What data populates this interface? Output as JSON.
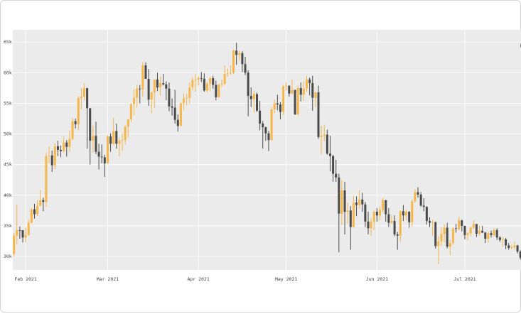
{
  "chart_data": {
    "type": "candlestick",
    "increasing_color": "#f5b64a",
    "decreasing_color": "#4a4a4a",
    "background": "#ebebeb",
    "xlim": [
      -0.4,
      173.2
    ],
    "xticks": [
      {
        "value": 4,
        "label": "Feb 2021"
      },
      {
        "value": 32,
        "label": "Mar 2021"
      },
      {
        "value": 63,
        "label": "Apr 2021"
      },
      {
        "value": 93,
        "label": "May 2021"
      },
      {
        "value": 124,
        "label": "Jun 2021"
      },
      {
        "value": 154,
        "label": "Jul 2021"
      }
    ],
    "ylim": [
      27800,
      67000
    ],
    "yticks": [
      {
        "value": 30000,
        "label": "30k"
      },
      {
        "value": 35000,
        "label": "35k"
      },
      {
        "value": 40000,
        "label": "40k"
      },
      {
        "value": 45000,
        "label": "45k"
      },
      {
        "value": 50000,
        "label": "50k"
      },
      {
        "value": 55000,
        "label": "55k"
      },
      {
        "value": 60000,
        "label": "60k"
      },
      {
        "value": 65000,
        "label": "65k"
      }
    ],
    "open": [
      30400,
      33400,
      34300,
      34300,
      33100,
      33500,
      35500,
      37700,
      36900,
      38300,
      39200,
      38900,
      46400,
      46500,
      44900,
      48000,
      47400,
      47200,
      48600,
      47900,
      49200,
      52100,
      51600,
      55900,
      56100,
      57500,
      54200,
      48900,
      49700,
      47100,
      46300,
      46200,
      45200,
      49600,
      48400,
      50500,
      48400,
      48900,
      49000,
      51200,
      52400,
      54900,
      55900,
      57400,
      57300,
      61200,
      59000,
      55600,
      56800,
      58900,
      57600,
      58300,
      58100,
      57400,
      54500,
      54300,
      52300,
      51300,
      55000,
      55800,
      55900,
      57600,
      58800,
      58900,
      59100,
      59000,
      57100,
      58200,
      59100,
      58000,
      56000,
      58100,
      58200,
      59800,
      59900,
      60000,
      63600,
      62900,
      63200,
      61400,
      60000,
      56200,
      55700,
      56500,
      53800,
      51700,
      51100,
      50100,
      49000,
      54000,
      55000,
      54800,
      53600,
      57800,
      57900,
      56600,
      57200,
      53200,
      57500,
      56400,
      57400,
      58900,
      58300,
      55900,
      56800,
      49500,
      49700,
      49900,
      46800,
      46400,
      43500,
      42900,
      37000,
      40800,
      37300,
      37500,
      34800,
      38800,
      38400,
      39300,
      38500,
      35700,
      34600,
      35700,
      37300,
      36700,
      37600,
      39200,
      36900,
      35500,
      35800,
      33600,
      33400,
      37400,
      36700,
      37300,
      35600,
      39000,
      40500,
      40100,
      38300,
      38100,
      35800,
      35500,
      35600,
      31700,
      32500,
      33700,
      34700,
      31600,
      32200,
      34600,
      34500,
      35900,
      35000,
      33500,
      33800,
      34700,
      35300,
      33700,
      34200,
      33900,
      32900,
      33800,
      33500,
      34300,
      33100,
      32700,
      32800,
      31800,
      31400,
      31500,
      31800,
      30800
    ],
    "high": [
      33800,
      38500,
      34900,
      34300,
      34700,
      36000,
      37900,
      38600,
      39200,
      40900,
      39600,
      46900,
      48000,
      47300,
      48500,
      48900,
      48100,
      49600,
      49000,
      50600,
      52600,
      52500,
      56200,
      57500,
      58300,
      57500,
      54200,
      51400,
      52000,
      48400,
      48300,
      46600,
      49800,
      50100,
      52600,
      51700,
      49400,
      50100,
      51400,
      52400,
      54900,
      57300,
      58000,
      58000,
      61700,
      61700,
      60600,
      56900,
      58900,
      60000,
      59400,
      59800,
      58600,
      58400,
      55800,
      57200,
      53200,
      55100,
      56600,
      56500,
      58400,
      59300,
      59800,
      59400,
      60100,
      59900,
      58500,
      59300,
      59500,
      58700,
      58200,
      58900,
      61200,
      60700,
      61200,
      63800,
      64900,
      63600,
      63500,
      62600,
      60400,
      57600,
      57100,
      56800,
      55400,
      52100,
      51200,
      50500,
      54400,
      55600,
      56400,
      55200,
      58000,
      58400,
      57900,
      58900,
      57200,
      57900,
      58400,
      58600,
      59500,
      59200,
      59500,
      56900,
      57900,
      51300,
      51500,
      50700,
      49700,
      46600,
      45800,
      43500,
      42500,
      42200,
      38800,
      38200,
      39900,
      39800,
      40800,
      40400,
      38900,
      37300,
      36300,
      37500,
      37900,
      38200,
      39500,
      39200,
      37900,
      36800,
      36700,
      34000,
      37500,
      38400,
      37600,
      37400,
      39300,
      41000,
      41300,
      40500,
      39500,
      38200,
      36400,
      36000,
      35700,
      33300,
      34800,
      35300,
      35500,
      32700,
      34700,
      35300,
      36500,
      36000,
      35000,
      33900,
      34900,
      35900,
      35300,
      35000,
      35000,
      34000,
      34000,
      34200,
      34600,
      34600,
      33300,
      33200,
      33000,
      32200,
      31900,
      32400,
      31900,
      31000
    ],
    "low": [
      30000,
      32000,
      32900,
      32300,
      32300,
      33400,
      35400,
      36200,
      36600,
      38200,
      37400,
      38100,
      45200,
      43800,
      44200,
      46400,
      46200,
      47000,
      46300,
      47100,
      49000,
      50900,
      50600,
      54000,
      55500,
      47600,
      45000,
      47000,
      46700,
      44200,
      45200,
      43000,
      45100,
      47100,
      48200,
      47600,
      46300,
      47200,
      48300,
      49400,
      51900,
      53100,
      54300,
      55000,
      56100,
      59000,
      54600,
      53400,
      54200,
      57000,
      56300,
      57900,
      55500,
      53700,
      53000,
      51700,
      50400,
      51300,
      53900,
      54700,
      54900,
      57100,
      56900,
      57900,
      58500,
      56900,
      56800,
      56900,
      57400,
      55500,
      55900,
      57700,
      58000,
      59300,
      59700,
      59800,
      61300,
      62000,
      60100,
      59600,
      52900,
      54400,
      53500,
      53600,
      50600,
      47600,
      48900,
      47200,
      48900,
      53400,
      53900,
      52400,
      53100,
      57100,
      56100,
      56500,
      53100,
      52900,
      55300,
      55400,
      56900,
      56300,
      53800,
      54400,
      49200,
      46700,
      48800,
      46600,
      43900,
      42200,
      42200,
      30700,
      35100,
      33600,
      35300,
      31100,
      34700,
      36600,
      37800,
      37300,
      34800,
      33600,
      33400,
      34300,
      35700,
      35900,
      37200,
      35700,
      34800,
      35300,
      33300,
      31100,
      32400,
      35800,
      35900,
      34700,
      34900,
      38800,
      39600,
      38100,
      37400,
      35200,
      34800,
      33400,
      31300,
      28800,
      31700,
      32300,
      31300,
      30200,
      32000,
      33900,
      34300,
      34100,
      32800,
      32700,
      33300,
      34500,
      33200,
      33400,
      33800,
      32200,
      32300,
      33100,
      33300,
      32700,
      32400,
      31600,
      31200,
      31100,
      31200,
      31200,
      30500,
      29500
    ],
    "close": [
      33400,
      34300,
      34200,
      33100,
      33500,
      35500,
      37700,
      36900,
      38300,
      39200,
      38900,
      46400,
      46500,
      44900,
      48000,
      47400,
      47200,
      48600,
      47900,
      49200,
      52100,
      51600,
      55900,
      56100,
      57500,
      54200,
      48900,
      49700,
      47100,
      46300,
      46200,
      45200,
      49600,
      48400,
      50500,
      48400,
      48900,
      49000,
      51200,
      52400,
      54900,
      55900,
      57400,
      57300,
      61200,
      59000,
      55600,
      56800,
      58900,
      57600,
      58300,
      58100,
      57400,
      54500,
      54300,
      52300,
      51300,
      55000,
      55800,
      55900,
      57600,
      58800,
      58900,
      59100,
      59000,
      57100,
      58200,
      59100,
      58000,
      56000,
      58100,
      58200,
      59800,
      59900,
      60000,
      63600,
      62900,
      63200,
      61400,
      60000,
      56200,
      55700,
      56500,
      53800,
      51700,
      51100,
      50100,
      49000,
      54000,
      55000,
      54800,
      53600,
      57800,
      57900,
      56600,
      57200,
      53200,
      57500,
      56400,
      57400,
      58900,
      58300,
      55900,
      56800,
      49500,
      49700,
      49900,
      46800,
      46400,
      43500,
      42900,
      37000,
      40800,
      37300,
      37500,
      34800,
      38800,
      38400,
      39300,
      38500,
      35700,
      34600,
      35700,
      37300,
      36700,
      37600,
      39200,
      36900,
      35500,
      35800,
      33600,
      33400,
      37400,
      36700,
      37300,
      35600,
      39000,
      40500,
      40100,
      38300,
      38100,
      35800,
      35500,
      35600,
      31700,
      32500,
      33700,
      34700,
      31600,
      32200,
      34600,
      34500,
      35900,
      35000,
      33500,
      33800,
      34700,
      35300,
      33700,
      34200,
      33900,
      32900,
      33800,
      33500,
      34300,
      33100,
      32700,
      32800,
      31800,
      31400,
      31500,
      31800,
      30800,
      29800
    ]
  }
}
